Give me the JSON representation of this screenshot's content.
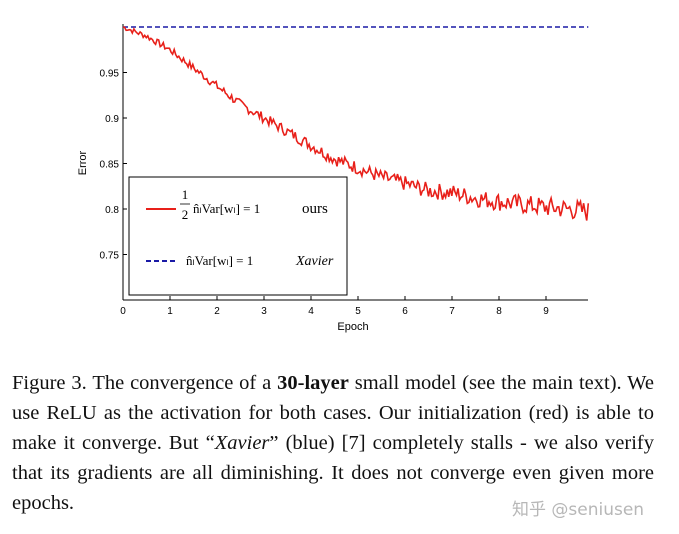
{
  "chart_data": {
    "type": "line",
    "title": "",
    "xlabel": "Epoch",
    "ylabel": "Error",
    "xlim": [
      0,
      10
    ],
    "ylim": [
      0.7,
      1.0
    ],
    "x_ticks": [
      "0",
      "1",
      "2",
      "3",
      "4",
      "5",
      "6",
      "7",
      "8",
      "9"
    ],
    "y_ticks": [
      "0.95",
      "0.9",
      "0.85",
      "0.8",
      "0.75"
    ],
    "series": [
      {
        "name": "ours",
        "legend_math": "½ n̂ₗ Var[wₗ] = 1",
        "color": "#e8201a",
        "style": "solid",
        "x": [
          0,
          0.5,
          1,
          1.5,
          2,
          2.5,
          3,
          3.5,
          4,
          4.5,
          5,
          5.5,
          6,
          6.5,
          7,
          7.5,
          8,
          8.5,
          9,
          9.5,
          9.9
        ],
        "values": [
          1.0,
          0.99,
          0.975,
          0.955,
          0.935,
          0.915,
          0.9,
          0.885,
          0.87,
          0.855,
          0.845,
          0.835,
          0.828,
          0.82,
          0.818,
          0.812,
          0.808,
          0.805,
          0.802,
          0.8,
          0.797
        ]
      },
      {
        "name": "Xavier",
        "legend_math": "n̂ₗ Var[wₗ] = 1",
        "color": "#1a1aa6",
        "style": "dashed",
        "x": [
          0,
          9.9
        ],
        "values": [
          1.0,
          1.0
        ]
      }
    ],
    "legend": {
      "position": "bottom-left",
      "entries": [
        {
          "math_frac_num": "1",
          "math_frac_den": "2",
          "math": "n̂ₗVar[wₗ] = 1",
          "label": "ours"
        },
        {
          "math": "n̂ₗVar[wₗ] = 1",
          "label": "Xavier"
        }
      ]
    }
  },
  "caption": {
    "figure_label": "Figure 3.",
    "part1": " The convergence of a ",
    "bold": "30-layer",
    "part2": " small model (see the main text).  We use ReLU as the activation for both cases.  Our initialization (red) is able to make it converge.  But “",
    "italic": "Xavier",
    "part3": "” (blue) [7] completely stalls - we also verify that its gradients are all diminishing.  It does not converge even given more epochs."
  },
  "watermark": "知乎 @seniusen"
}
